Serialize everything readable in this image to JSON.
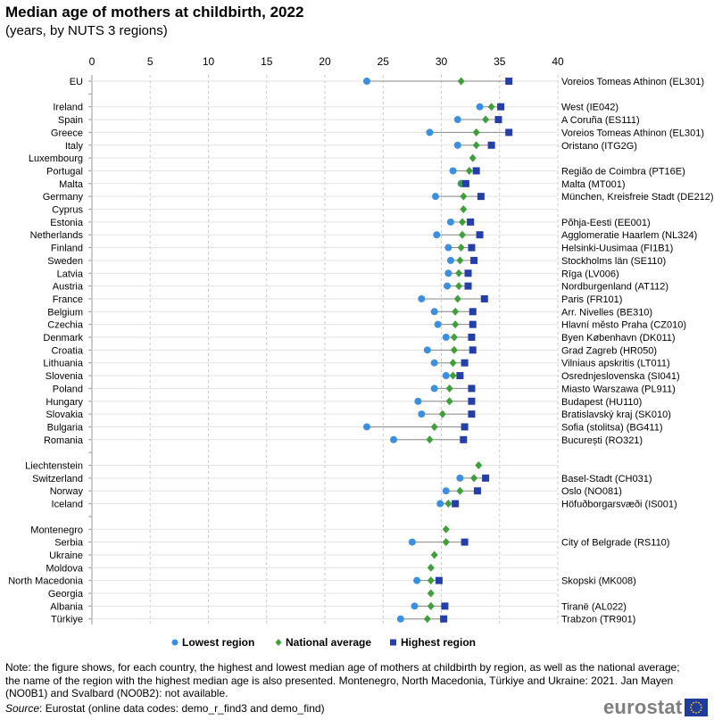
{
  "header": {
    "title": "Median age of mothers at childbirth, 2022",
    "subtitle": "(years, by NUTS  3 regions)"
  },
  "footer": {
    "note": "Note: the figure shows, for each country, the highest and lowest median age of mothers at childbirth by region, as well as the national average; the name of the region with the highest median age is also presented. Montenegro, North Macedonia, Türkiye and Ukraine: 2021. Jan Mayen (NO0B1) and Svalbard (NO0B2): not available.",
    "source_label": "Source",
    "source_text": ": Eurostat (online data codes: demo_r_find3 and demo_find)",
    "logo_text": "eurostat"
  },
  "colors": {
    "lowest": "#3b8fe0",
    "national": "#3f9f3a",
    "highest": "#253fa8",
    "grid": "#c8c8c8",
    "flag_blue": "#1f3c9c",
    "flag_stars": "#ffd200"
  },
  "chart_data": {
    "type": "dot",
    "x_ticks": [
      0,
      5,
      10,
      15,
      20,
      25,
      30,
      35,
      40
    ],
    "xlim": [
      0,
      40
    ],
    "series_names": [
      "Lowest region",
      "National average",
      "Highest region"
    ],
    "rows": [
      {
        "country": "EU",
        "low": 23.6,
        "nat": 31.7,
        "high": 35.8,
        "high_region": "Voreios Tomeas Athinon (EL301)"
      },
      null,
      {
        "country": "Ireland",
        "low": 33.3,
        "nat": 34.3,
        "high": 35.1,
        "high_region": "West (IE042)"
      },
      {
        "country": "Spain",
        "low": 31.4,
        "nat": 33.8,
        "high": 34.9,
        "high_region": "A Coruña (ES111)"
      },
      {
        "country": "Greece",
        "low": 29.0,
        "nat": 33.0,
        "high": 35.8,
        "high_region": "Voreios Tomeas Athinon (EL301)"
      },
      {
        "country": "Italy",
        "low": 31.4,
        "nat": 33.0,
        "high": 34.3,
        "high_region": "Oristano (ITG2G)"
      },
      {
        "country": "Luxembourg",
        "low": null,
        "nat": 32.7,
        "high": null,
        "high_region": ""
      },
      {
        "country": "Portugal",
        "low": 31.0,
        "nat": 32.4,
        "high": 33.0,
        "high_region": "Região de Coimbra (PT16E)"
      },
      {
        "country": "Malta",
        "low": 31.7,
        "nat": 31.7,
        "high": 32.1,
        "high_region": "Malta (MT001)"
      },
      {
        "country": "Germany",
        "low": 29.5,
        "nat": 31.9,
        "high": 33.4,
        "high_region": "München, Kreisfreie Stadt (DE212)"
      },
      {
        "country": "Cyprus",
        "low": null,
        "nat": 31.9,
        "high": null,
        "high_region": ""
      },
      {
        "country": "Estonia",
        "low": 30.8,
        "nat": 31.8,
        "high": 32.5,
        "high_region": "Põhja-Eesti (EE001)"
      },
      {
        "country": "Netherlands",
        "low": 29.6,
        "nat": 31.8,
        "high": 33.3,
        "high_region": "Agglomeratie Haarlem (NL324)"
      },
      {
        "country": "Finland",
        "low": 30.6,
        "nat": 31.7,
        "high": 32.6,
        "high_region": "Helsinki-Uusimaa (FI1B1)"
      },
      {
        "country": "Sweden",
        "low": 30.8,
        "nat": 31.6,
        "high": 32.8,
        "high_region": "Stockholms län (SE110)"
      },
      {
        "country": "Latvia",
        "low": 30.6,
        "nat": 31.5,
        "high": 32.3,
        "high_region": "Rīga (LV006)"
      },
      {
        "country": "Austria",
        "low": 30.5,
        "nat": 31.5,
        "high": 32.3,
        "high_region": "Nordburgenland (AT112)"
      },
      {
        "country": "France",
        "low": 28.3,
        "nat": 31.4,
        "high": 33.7,
        "high_region": "Paris (FR101)"
      },
      {
        "country": "Belgium",
        "low": 29.4,
        "nat": 31.2,
        "high": 32.7,
        "high_region": "Arr. Nivelles (BE310)"
      },
      {
        "country": "Czechia",
        "low": 29.7,
        "nat": 31.2,
        "high": 32.7,
        "high_region": "Hlavní město Praha (CZ010)"
      },
      {
        "country": "Denmark",
        "low": 30.4,
        "nat": 31.1,
        "high": 32.6,
        "high_region": "Byen København (DK011)"
      },
      {
        "country": "Croatia",
        "low": 28.8,
        "nat": 31.1,
        "high": 32.7,
        "high_region": "Grad Zagreb (HR050)"
      },
      {
        "country": "Lithuania",
        "low": 29.4,
        "nat": 31.0,
        "high": 32.0,
        "high_region": "Vilniaus apskritis (LT011)"
      },
      {
        "country": "Slovenia",
        "low": 30.4,
        "nat": 31.0,
        "high": 31.6,
        "high_region": "Osrednjeslovenska (SI041)"
      },
      {
        "country": "Poland",
        "low": 29.4,
        "nat": 30.7,
        "high": 32.6,
        "high_region": "Miasto Warszawa (PL911)"
      },
      {
        "country": "Hungary",
        "low": 28.0,
        "nat": 30.7,
        "high": 32.6,
        "high_region": "Budapest (HU110)"
      },
      {
        "country": "Slovakia",
        "low": 28.3,
        "nat": 30.1,
        "high": 32.6,
        "high_region": "Bratislavský kraj (SK010)"
      },
      {
        "country": "Bulgaria",
        "low": 23.6,
        "nat": 29.4,
        "high": 32.0,
        "high_region": "Sofia (stolitsa) (BG411)"
      },
      {
        "country": "Romania",
        "low": 25.9,
        "nat": 29.0,
        "high": 31.9,
        "high_region": "București (RO321)"
      },
      null,
      {
        "country": "Liechtenstein",
        "low": null,
        "nat": 33.2,
        "high": null,
        "high_region": ""
      },
      {
        "country": "Switzerland",
        "low": 31.6,
        "nat": 32.8,
        "high": 33.8,
        "high_region": "Basel-Stadt (CH031)"
      },
      {
        "country": "Norway",
        "low": 30.4,
        "nat": 31.6,
        "high": 33.1,
        "high_region": "Oslo (NO081)"
      },
      {
        "country": "Iceland",
        "low": 29.9,
        "nat": 30.6,
        "high": 31.2,
        "high_region": "Höfuðborgarsvæði (IS001)"
      },
      null,
      {
        "country": "Montenegro",
        "low": null,
        "nat": 30.4,
        "high": null,
        "high_region": ""
      },
      {
        "country": "Serbia",
        "low": 27.5,
        "nat": 30.4,
        "high": 32.0,
        "high_region": "City of Belgrade (RS110)"
      },
      {
        "country": "Ukraine",
        "low": null,
        "nat": 29.4,
        "high": null,
        "high_region": ""
      },
      {
        "country": "Moldova",
        "low": null,
        "nat": 29.1,
        "high": null,
        "high_region": ""
      },
      {
        "country": "North Macedonia",
        "low": 27.9,
        "nat": 29.1,
        "high": 29.8,
        "high_region": "Skopski (MK008)"
      },
      {
        "country": "Georgia",
        "low": null,
        "nat": 29.1,
        "high": null,
        "high_region": ""
      },
      {
        "country": "Albania",
        "low": 27.7,
        "nat": 29.1,
        "high": 30.3,
        "high_region": "Tiranë (AL022)"
      },
      {
        "country": "Türkiye",
        "low": 26.5,
        "nat": 28.8,
        "high": 30.2,
        "high_region": "Trabzon (TR901)"
      }
    ]
  }
}
